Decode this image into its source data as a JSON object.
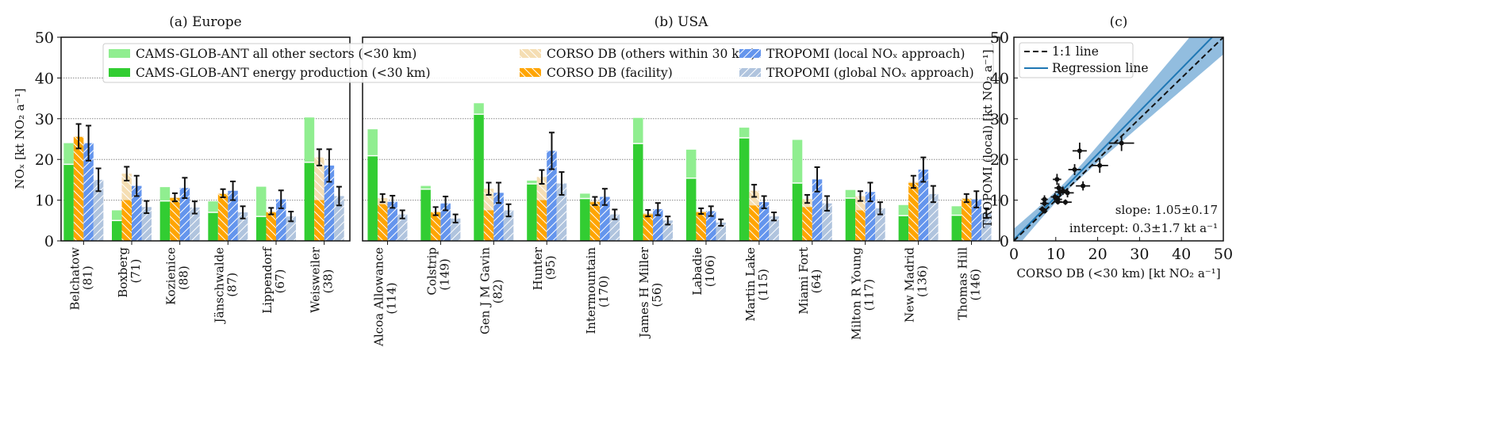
{
  "colors": {
    "cams_other": "#90ee90",
    "cams_energy": "#32cd32",
    "corso_others": "#f5deb3",
    "corso_facility": "#ffa500",
    "tropomi_local": "#6495ed",
    "tropomi_global": "#b0c4de",
    "band": "#7fb2d9",
    "regression": "#1f77b4"
  },
  "chart_data": [
    {
      "type": "bar",
      "title": "(a) Europe",
      "ylabel": "NOₓ [kt NO₂ a⁻¹]",
      "ylim": [
        0,
        50
      ],
      "yticks": [
        "0",
        "10",
        "20",
        "30",
        "40",
        "50"
      ],
      "grid": "horizontal dotted",
      "legend": {
        "placement": "top",
        "entries": [
          "CAMS-GLOB-ANT all other sectors (<30 km)",
          "CAMS-GLOB-ANT energy production (<30 km)",
          "CORSO DB (others within 30 km)",
          "CORSO DB (facility)",
          "TROPOMI (local NOₓ approach)",
          "TROPOMI (global NOₓ approach)"
        ]
      },
      "categories": [
        {
          "name": "Belchatow",
          "n": "(81)",
          "cams_energy": 18.8,
          "cams_total": 24,
          "corso_facility": 25.5,
          "corso_total": 25.7,
          "corso_err": 3,
          "trop_local": 24,
          "trop_local_err": 4.3,
          "trop_global": 15,
          "trop_global_err": 2.8
        },
        {
          "name": "Boxberg",
          "n": "(71)",
          "cams_energy": 5,
          "cams_total": 7.5,
          "corso_facility": 10,
          "corso_total": 16.5,
          "corso_err": 1.7,
          "trop_local": 13.5,
          "trop_local_err": 2.5,
          "trop_global": 8.3,
          "trop_global_err": 1.5
        },
        {
          "name": "Kozienice",
          "n": "(88)",
          "cams_energy": 9.8,
          "cams_total": 13.2,
          "corso_facility": 10.5,
          "corso_total": 10.7,
          "corso_err": 1,
          "trop_local": 13,
          "trop_local_err": 2.5,
          "trop_global": 8.2,
          "trop_global_err": 1.5
        },
        {
          "name": "Jänschwalde",
          "n": "(87)",
          "cams_energy": 7,
          "cams_total": 9.7,
          "corso_facility": 11.5,
          "corso_total": 11.7,
          "corso_err": 1,
          "trop_local": 12.3,
          "trop_local_err": 2.3,
          "trop_global": 7,
          "trop_global_err": 1.5
        },
        {
          "name": "Lippendorf",
          "n": "(67)",
          "cams_energy": 6,
          "cams_total": 13.3,
          "corso_facility": 7,
          "corso_total": 7.3,
          "corso_err": 0.8,
          "trop_local": 10.2,
          "trop_local_err": 2.2,
          "trop_global": 6,
          "trop_global_err": 1.2
        },
        {
          "name": "Weisweiler",
          "n": "(38)",
          "cams_energy": 19.3,
          "cams_total": 30.3,
          "corso_facility": 10,
          "corso_total": 20.5,
          "corso_err": 2,
          "trop_local": 18.5,
          "trop_local_err": 4,
          "trop_global": 11,
          "trop_global_err": 2.3
        }
      ]
    },
    {
      "type": "bar",
      "title": "(b) USA",
      "ylim": [
        0,
        50
      ],
      "categories": [
        {
          "name": "Alcoa Allowance",
          "n": "(114)",
          "cams_energy": 20.9,
          "cams_total": 27.4,
          "corso_facility": 9,
          "corso_total": 10.5,
          "corso_err": 1,
          "trop_local": 9.6,
          "trop_local_err": 1.5,
          "trop_global": 6.5,
          "trop_global_err": 1
        },
        {
          "name": "Colstrip",
          "n": "(149)",
          "cams_energy": 12.7,
          "cams_total": 13.5,
          "corso_facility": 7,
          "corso_total": 7.3,
          "corso_err": 1,
          "trop_local": 9.2,
          "trop_local_err": 1.7,
          "trop_global": 5.5,
          "trop_global_err": 1
        },
        {
          "name": "Gen J M Gavin",
          "n": "(82)",
          "cams_energy": 31.1,
          "cams_total": 33.8,
          "corso_facility": 7.5,
          "corso_total": 12.8,
          "corso_err": 1.5,
          "trop_local": 11.8,
          "trop_local_err": 2.5,
          "trop_global": 7.5,
          "trop_global_err": 1.5
        },
        {
          "name": "Hunter",
          "n": "(95)",
          "cams_energy": 14,
          "cams_total": 14.8,
          "corso_facility": 10,
          "corso_total": 15.7,
          "corso_err": 1.7,
          "trop_local": 22.1,
          "trop_local_err": 4.5,
          "trop_global": 14.1,
          "trop_global_err": 2.8
        },
        {
          "name": "Intermountain",
          "n": "(170)",
          "cams_energy": 10.4,
          "cams_total": 11.6,
          "corso_facility": 9.5,
          "corso_total": 9.8,
          "corso_err": 1,
          "trop_local": 10.8,
          "trop_local_err": 2,
          "trop_global": 6.5,
          "trop_global_err": 1.2
        },
        {
          "name": "James H Miller",
          "n": "(56)",
          "cams_energy": 23.9,
          "cams_total": 30.2,
          "corso_facility": 6.5,
          "corso_total": 6.8,
          "corso_err": 0.8,
          "trop_local": 7.8,
          "trop_local_err": 1.5,
          "trop_global": 5,
          "trop_global_err": 1
        },
        {
          "name": "Labadie",
          "n": "(106)",
          "cams_energy": 15.4,
          "cams_total": 22.4,
          "corso_facility": 7,
          "corso_total": 7.3,
          "corso_err": 0.7,
          "trop_local": 7.3,
          "trop_local_err": 1.2,
          "trop_global": 4.5,
          "trop_global_err": 0.8
        },
        {
          "name": "Martin Lake",
          "n": "(115)",
          "cams_energy": 25.3,
          "cams_total": 27.8,
          "corso_facility": 8.7,
          "corso_total": 12.3,
          "corso_err": 1.5,
          "trop_local": 9.5,
          "trop_local_err": 1.5,
          "trop_global": 6,
          "trop_global_err": 1
        },
        {
          "name": "Miami Fort",
          "n": "(64)",
          "cams_energy": 14.2,
          "cams_total": 24.8,
          "corso_facility": 8.3,
          "corso_total": 10.3,
          "corso_err": 1,
          "trop_local": 15.1,
          "trop_local_err": 3,
          "trop_global": 9.2,
          "trop_global_err": 1.8
        },
        {
          "name": "Milton R Young",
          "n": "(117)",
          "cams_energy": 10.5,
          "cams_total": 12.5,
          "corso_facility": 7.5,
          "corso_total": 11,
          "corso_err": 1.2,
          "trop_local": 12,
          "trop_local_err": 2.3,
          "trop_global": 8,
          "trop_global_err": 1.5
        },
        {
          "name": "New Madrid",
          "n": "(136)",
          "cams_energy": 6.2,
          "cams_total": 8.8,
          "corso_facility": 14.2,
          "corso_total": 14.5,
          "corso_err": 1.5,
          "trop_local": 17.5,
          "trop_local_err": 3,
          "trop_global": 11.5,
          "trop_global_err": 2
        },
        {
          "name": "Thomas Hill",
          "n": "(146)",
          "cams_energy": 6.3,
          "cams_total": 8.5,
          "corso_facility": 10.3,
          "corso_total": 10.5,
          "corso_err": 1,
          "trop_local": 10.2,
          "trop_local_err": 2,
          "trop_global": 6.8,
          "trop_global_err": 1.2
        }
      ]
    },
    {
      "type": "scatter",
      "title": "(c)",
      "xlabel": "CORSO DB (<30 km) [kt NO₂ a⁻¹]",
      "ylabel": "TROPOMI (local) [kt NO₂ a⁻¹]",
      "xlim": [
        0,
        50
      ],
      "ylim": [
        0,
        50
      ],
      "xticks": [
        "0",
        "10",
        "20",
        "30",
        "40",
        "50"
      ],
      "yticks": [
        "0",
        "10",
        "20",
        "30",
        "40",
        "50"
      ],
      "legend": {
        "placement": "top-left",
        "entries": [
          "1:1 line",
          "Regression line"
        ]
      },
      "regression": {
        "slope": 1.05,
        "slope_err": 0.17,
        "intercept": 0.3,
        "intercept_err": 1.7
      },
      "annotations": [
        "slope: 1.05±0.17",
        "intercept: 0.3±1.7 kt a⁻¹"
      ],
      "points_source": "corso_total vs trop_local of all sites"
    }
  ]
}
